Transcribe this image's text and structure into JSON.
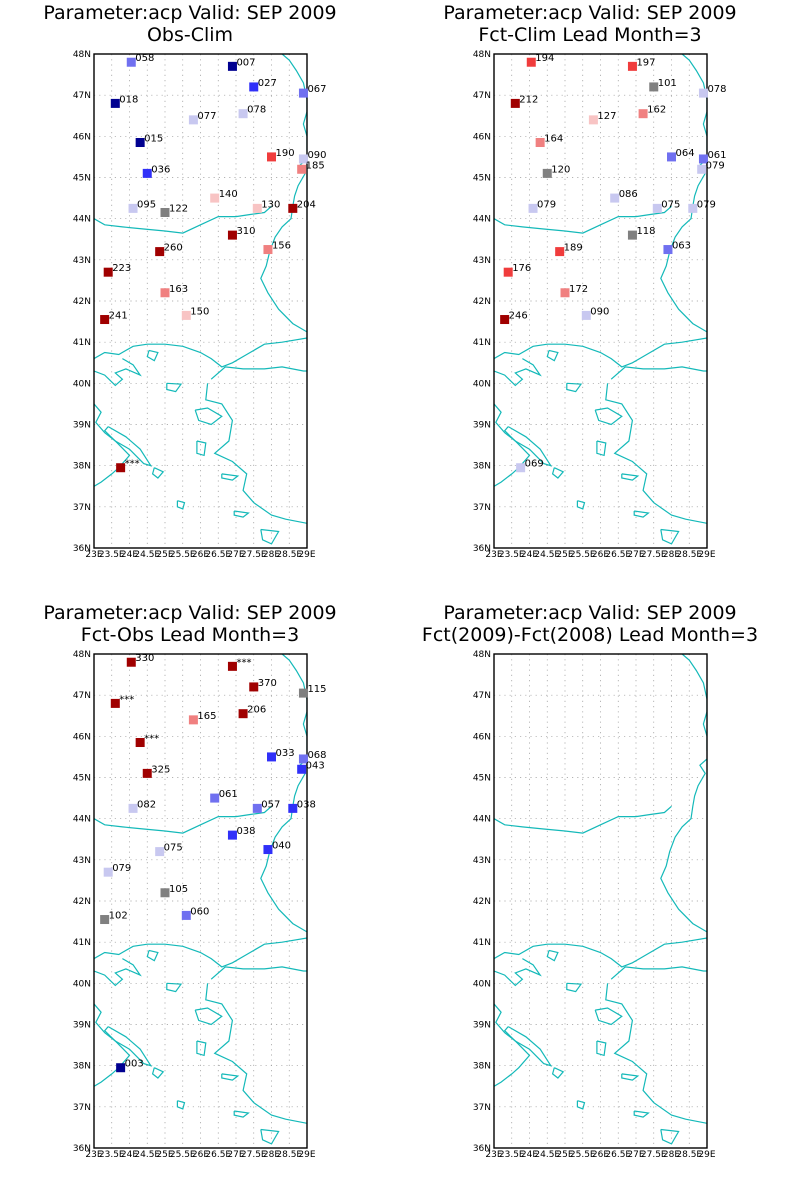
{
  "axes": {
    "lat_labels": [
      "36N",
      "37N",
      "38N",
      "39N",
      "40N",
      "41N",
      "42N",
      "43N",
      "44N",
      "45N",
      "46N",
      "47N",
      "48N"
    ],
    "lon_labels": [
      "23E",
      "23.5E",
      "24E",
      "24.5E",
      "25E",
      "25.5E",
      "26E",
      "26.5E",
      "27E",
      "27.5E",
      "28E",
      "28.5E",
      "29E"
    ],
    "lat_range": [
      36,
      48
    ],
    "lon_range": [
      23,
      29
    ]
  },
  "colors": {
    "coastline": "#14b9b9",
    "frame": "#000000",
    "grid": "#9a9a9a",
    "dark_red": "#a00000",
    "red": "#f03c3c",
    "salmon": "#f08080",
    "pink": "#f8c4c4",
    "gray": "#808080",
    "light_blue": "#c8c8f0",
    "mid_blue": "#7070f0",
    "blue": "#3030f8",
    "navy": "#000090"
  },
  "panels": [
    {
      "title_line1": "Parameter:acp Valid: SEP 2009",
      "title_line2": "Obs-Clim",
      "stations": [
        {
          "lon": 24.05,
          "lat": 47.8,
          "label": "058",
          "color": "mid_blue"
        },
        {
          "lon": 26.9,
          "lat": 47.7,
          "label": "007",
          "color": "navy"
        },
        {
          "lon": 27.5,
          "lat": 47.2,
          "label": "027",
          "color": "blue"
        },
        {
          "lon": 28.9,
          "lat": 47.05,
          "label": "067",
          "color": "mid_blue"
        },
        {
          "lon": 23.6,
          "lat": 46.8,
          "label": "018",
          "color": "navy"
        },
        {
          "lon": 25.8,
          "lat": 46.4,
          "label": "077",
          "color": "light_blue"
        },
        {
          "lon": 27.2,
          "lat": 46.55,
          "label": "078",
          "color": "light_blue"
        },
        {
          "lon": 24.3,
          "lat": 45.85,
          "label": "015",
          "color": "navy"
        },
        {
          "lon": 28.0,
          "lat": 45.5,
          "label": "190",
          "color": "red"
        },
        {
          "lon": 28.9,
          "lat": 45.45,
          "label": "090",
          "color": "light_blue"
        },
        {
          "lon": 28.85,
          "lat": 45.2,
          "label": "185",
          "color": "salmon"
        },
        {
          "lon": 24.5,
          "lat": 45.1,
          "label": "036",
          "color": "blue"
        },
        {
          "lon": 26.4,
          "lat": 44.5,
          "label": "140",
          "color": "pink"
        },
        {
          "lon": 24.1,
          "lat": 44.25,
          "label": "095",
          "color": "light_blue"
        },
        {
          "lon": 25.0,
          "lat": 44.15,
          "label": "122",
          "color": "gray"
        },
        {
          "lon": 27.6,
          "lat": 44.25,
          "label": "130",
          "color": "pink"
        },
        {
          "lon": 28.6,
          "lat": 44.25,
          "label": "204",
          "color": "dark_red"
        },
        {
          "lon": 26.9,
          "lat": 43.6,
          "label": "310",
          "color": "dark_red"
        },
        {
          "lon": 24.85,
          "lat": 43.2,
          "label": "260",
          "color": "dark_red"
        },
        {
          "lon": 27.9,
          "lat": 43.25,
          "label": "156",
          "color": "salmon"
        },
        {
          "lon": 23.4,
          "lat": 42.7,
          "label": "223",
          "color": "dark_red"
        },
        {
          "lon": 25.0,
          "lat": 42.2,
          "label": "163",
          "color": "salmon"
        },
        {
          "lon": 25.6,
          "lat": 41.65,
          "label": "150",
          "color": "pink"
        },
        {
          "lon": 23.3,
          "lat": 41.55,
          "label": "241",
          "color": "dark_red"
        },
        {
          "lon": 23.75,
          "lat": 37.95,
          "label": "***",
          "color": "dark_red"
        }
      ]
    },
    {
      "title_line1": "Parameter:acp Valid: SEP 2009",
      "title_line2": "Fct-Clim Lead Month=3",
      "stations": [
        {
          "lon": 24.05,
          "lat": 47.8,
          "label": "194",
          "color": "red"
        },
        {
          "lon": 26.9,
          "lat": 47.7,
          "label": "197",
          "color": "red"
        },
        {
          "lon": 27.5,
          "lat": 47.2,
          "label": "101",
          "color": "gray"
        },
        {
          "lon": 28.9,
          "lat": 47.05,
          "label": "078",
          "color": "light_blue"
        },
        {
          "lon": 23.6,
          "lat": 46.8,
          "label": "212",
          "color": "dark_red"
        },
        {
          "lon": 25.8,
          "lat": 46.4,
          "label": "127",
          "color": "pink"
        },
        {
          "lon": 27.2,
          "lat": 46.55,
          "label": "162",
          "color": "salmon"
        },
        {
          "lon": 24.3,
          "lat": 45.85,
          "label": "164",
          "color": "salmon"
        },
        {
          "lon": 28.0,
          "lat": 45.5,
          "label": "064",
          "color": "mid_blue"
        },
        {
          "lon": 28.9,
          "lat": 45.45,
          "label": "061",
          "color": "mid_blue"
        },
        {
          "lon": 28.85,
          "lat": 45.2,
          "label": "079",
          "color": "light_blue"
        },
        {
          "lon": 24.5,
          "lat": 45.1,
          "label": "120",
          "color": "gray"
        },
        {
          "lon": 26.4,
          "lat": 44.5,
          "label": "086",
          "color": "light_blue"
        },
        {
          "lon": 24.1,
          "lat": 44.25,
          "label": "079",
          "color": "light_blue"
        },
        {
          "lon": 27.6,
          "lat": 44.25,
          "label": "075",
          "color": "light_blue"
        },
        {
          "lon": 28.6,
          "lat": 44.25,
          "label": "079",
          "color": "light_blue"
        },
        {
          "lon": 26.9,
          "lat": 43.6,
          "label": "118",
          "color": "gray"
        },
        {
          "lon": 24.85,
          "lat": 43.2,
          "label": "189",
          "color": "red"
        },
        {
          "lon": 27.9,
          "lat": 43.25,
          "label": "063",
          "color": "mid_blue"
        },
        {
          "lon": 23.4,
          "lat": 42.7,
          "label": "176",
          "color": "red"
        },
        {
          "lon": 25.0,
          "lat": 42.2,
          "label": "172",
          "color": "salmon"
        },
        {
          "lon": 25.6,
          "lat": 41.65,
          "label": "090",
          "color": "light_blue"
        },
        {
          "lon": 23.3,
          "lat": 41.55,
          "label": "246",
          "color": "dark_red"
        },
        {
          "lon": 23.75,
          "lat": 37.95,
          "label": "069",
          "color": "light_blue"
        }
      ]
    },
    {
      "title_line1": "Parameter:acp Valid: SEP 2009",
      "title_line2": "Fct-Obs Lead Month=3",
      "stations": [
        {
          "lon": 24.05,
          "lat": 47.8,
          "label": "330",
          "color": "dark_red"
        },
        {
          "lon": 26.9,
          "lat": 47.7,
          "label": "***",
          "color": "dark_red"
        },
        {
          "lon": 27.5,
          "lat": 47.2,
          "label": "370",
          "color": "dark_red"
        },
        {
          "lon": 28.9,
          "lat": 47.05,
          "label": "115",
          "color": "gray"
        },
        {
          "lon": 23.6,
          "lat": 46.8,
          "label": "***",
          "color": "dark_red"
        },
        {
          "lon": 25.8,
          "lat": 46.4,
          "label": "165",
          "color": "salmon"
        },
        {
          "lon": 27.2,
          "lat": 46.55,
          "label": "206",
          "color": "dark_red"
        },
        {
          "lon": 24.3,
          "lat": 45.85,
          "label": "***",
          "color": "dark_red"
        },
        {
          "lon": 28.0,
          "lat": 45.5,
          "label": "033",
          "color": "blue"
        },
        {
          "lon": 28.9,
          "lat": 45.45,
          "label": "068",
          "color": "mid_blue"
        },
        {
          "lon": 28.85,
          "lat": 45.2,
          "label": "043",
          "color": "blue"
        },
        {
          "lon": 24.5,
          "lat": 45.1,
          "label": "325",
          "color": "dark_red"
        },
        {
          "lon": 26.4,
          "lat": 44.5,
          "label": "061",
          "color": "mid_blue"
        },
        {
          "lon": 24.1,
          "lat": 44.25,
          "label": "082",
          "color": "light_blue"
        },
        {
          "lon": 27.6,
          "lat": 44.25,
          "label": "057",
          "color": "mid_blue"
        },
        {
          "lon": 28.6,
          "lat": 44.25,
          "label": "038",
          "color": "blue"
        },
        {
          "lon": 26.9,
          "lat": 43.6,
          "label": "038",
          "color": "blue"
        },
        {
          "lon": 24.85,
          "lat": 43.2,
          "label": "075",
          "color": "light_blue"
        },
        {
          "lon": 27.9,
          "lat": 43.25,
          "label": "040",
          "color": "blue"
        },
        {
          "lon": 23.4,
          "lat": 42.7,
          "label": "079",
          "color": "light_blue"
        },
        {
          "lon": 25.0,
          "lat": 42.2,
          "label": "105",
          "color": "gray"
        },
        {
          "lon": 25.6,
          "lat": 41.65,
          "label": "060",
          "color": "mid_blue"
        },
        {
          "lon": 23.3,
          "lat": 41.55,
          "label": "102",
          "color": "gray"
        },
        {
          "lon": 23.75,
          "lat": 37.95,
          "label": "003",
          "color": "navy"
        }
      ]
    },
    {
      "title_line1": "Parameter:acp Valid: SEP 2009",
      "title_line2": "Fct(2009)-Fct(2008) Lead Month=3",
      "stations": []
    }
  ]
}
